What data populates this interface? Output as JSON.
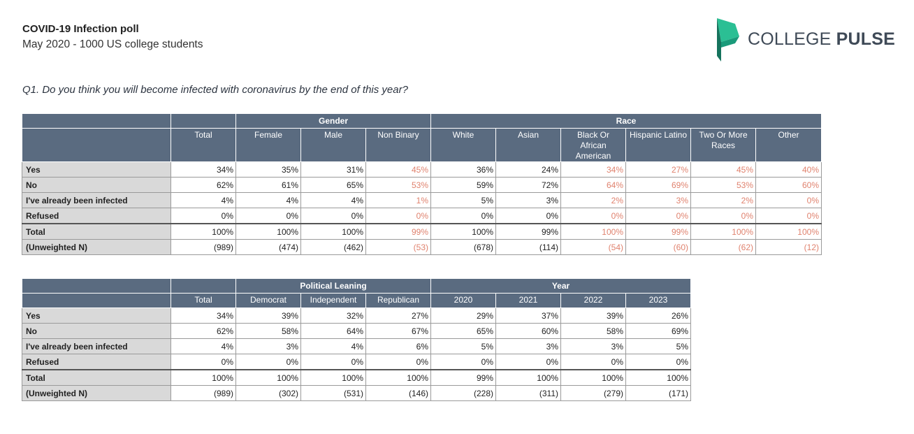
{
  "header": {
    "title": "COVID-19 Infection poll",
    "subtitle": "May 2020 - 1000 US college students",
    "logo_light": "COLLEGE ",
    "logo_bold": "PULSE",
    "question": "Q1. Do you think you will become infected with coronavirus by the end of this year?"
  },
  "colors": {
    "header_bg": "#5a6b80",
    "label_bg": "#d9d9d9",
    "low_n_text": "#e0826e",
    "logo_green": "#1a9a7a"
  },
  "table1": {
    "groups": {
      "gender": "Gender",
      "race": "Race"
    },
    "columns": [
      "Total",
      "Female",
      "Male",
      "Non Binary",
      "White",
      "Asian",
      "Black Or African American",
      "Hispanic Latino",
      "Two Or More Races",
      "Other"
    ],
    "rows": [
      {
        "label": "Yes",
        "values": [
          "34%",
          "35%",
          "31%",
          "45%",
          "36%",
          "24%",
          "34%",
          "27%",
          "45%",
          "40%"
        ]
      },
      {
        "label": "No",
        "values": [
          "62%",
          "61%",
          "65%",
          "53%",
          "59%",
          "72%",
          "64%",
          "69%",
          "53%",
          "60%"
        ]
      },
      {
        "label": "I've already been infected",
        "values": [
          "4%",
          "4%",
          "4%",
          "1%",
          "5%",
          "3%",
          "2%",
          "3%",
          "2%",
          "0%"
        ]
      },
      {
        "label": "Refused",
        "values": [
          "0%",
          "0%",
          "0%",
          "0%",
          "0%",
          "0%",
          "0%",
          "0%",
          "0%",
          "0%"
        ]
      },
      {
        "label": "Total",
        "values": [
          "100%",
          "100%",
          "100%",
          "99%",
          "100%",
          "99%",
          "100%",
          "99%",
          "100%",
          "100%"
        ]
      },
      {
        "label": "(Unweighted N)",
        "values": [
          "(989)",
          "(474)",
          "(462)",
          "(53)",
          "(678)",
          "(114)",
          "(54)",
          "(60)",
          "(62)",
          "(12)"
        ]
      }
    ]
  },
  "table2": {
    "groups": {
      "political": "Political Leaning",
      "year": "Year"
    },
    "columns": [
      "Total",
      "Democrat",
      "Independent",
      "Republican",
      "2020",
      "2021",
      "2022",
      "2023"
    ],
    "rows": [
      {
        "label": "Yes",
        "values": [
          "34%",
          "39%",
          "32%",
          "27%",
          "29%",
          "37%",
          "39%",
          "26%"
        ]
      },
      {
        "label": "No",
        "values": [
          "62%",
          "58%",
          "64%",
          "67%",
          "65%",
          "60%",
          "58%",
          "69%"
        ]
      },
      {
        "label": "I've already been infected",
        "values": [
          "4%",
          "3%",
          "4%",
          "6%",
          "5%",
          "3%",
          "3%",
          "5%"
        ]
      },
      {
        "label": "Refused",
        "values": [
          "0%",
          "0%",
          "0%",
          "0%",
          "0%",
          "0%",
          "0%",
          "0%"
        ]
      },
      {
        "label": "Total",
        "values": [
          "100%",
          "100%",
          "100%",
          "100%",
          "99%",
          "100%",
          "100%",
          "100%"
        ]
      },
      {
        "label": "(Unweighted N)",
        "values": [
          "(989)",
          "(302)",
          "(531)",
          "(146)",
          "(228)",
          "(311)",
          "(279)",
          "(171)"
        ]
      }
    ]
  }
}
